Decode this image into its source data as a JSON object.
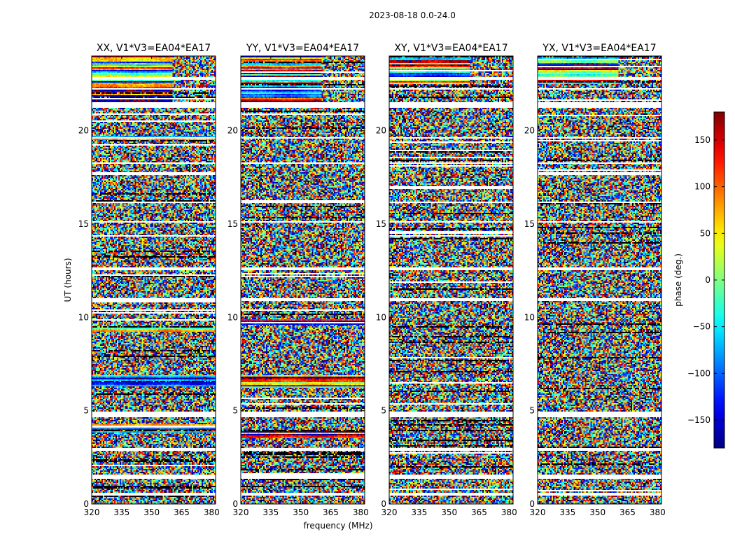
{
  "chart_data": {
    "type": "heatmap",
    "suptitle": "2023-08-18 0.0-24.0",
    "xlabel": "frequency (MHz)",
    "ylabel": "UT (hours)",
    "xlim": [
      320,
      382
    ],
    "ylim": [
      0,
      24
    ],
    "xticks": [
      320,
      335,
      350,
      365,
      380
    ],
    "yticks": [
      0,
      5,
      10,
      15,
      20
    ],
    "panels": [
      {
        "title": "XX, V1*V3=EA04*EA17",
        "coherent_until_hours": 21.5,
        "strong_bands": [
          [
            6.3,
            6.9
          ],
          [
            9.2,
            9.5
          ],
          [
            19.4,
            19.7
          ],
          [
            3.8,
            4.3
          ]
        ]
      },
      {
        "title": "YY, V1*V3=EA04*EA17",
        "coherent_until_hours": 21.5,
        "strong_bands": [
          [
            6.2,
            6.9
          ],
          [
            9.6,
            9.9
          ],
          [
            3.5,
            3.9
          ],
          [
            22.8,
            23.6
          ]
        ]
      },
      {
        "title": "XY, V1*V3=EA04*EA17",
        "coherent_until_hours": 22.5,
        "strong_bands": []
      },
      {
        "title": "YX, V1*V3=EA04*EA17",
        "coherent_until_hours": 22.5,
        "strong_bands": []
      }
    ],
    "flagged_hours": [
      [
        0.45,
        0.6
      ],
      [
        1.35,
        1.55
      ],
      [
        2.85,
        3.0
      ],
      [
        4.65,
        4.95
      ],
      [
        10.9,
        11.0
      ],
      [
        12.5,
        12.65
      ],
      [
        15.05,
        15.15
      ],
      [
        16.1,
        16.2
      ],
      [
        18.2,
        18.3
      ],
      [
        19.55,
        19.65
      ],
      [
        21.2,
        21.5
      ],
      [
        22.2,
        22.3
      ],
      [
        22.7,
        22.85
      ]
    ],
    "colorbar": {
      "label": "phase (deg.)",
      "range": [
        -180,
        180
      ],
      "ticks": [
        150,
        100,
        50,
        0,
        -50,
        -100,
        -150
      ],
      "tick_labels": [
        "150",
        "100",
        "50",
        "0",
        "−50",
        "−100",
        "−150"
      ],
      "colormap": "jet"
    }
  }
}
